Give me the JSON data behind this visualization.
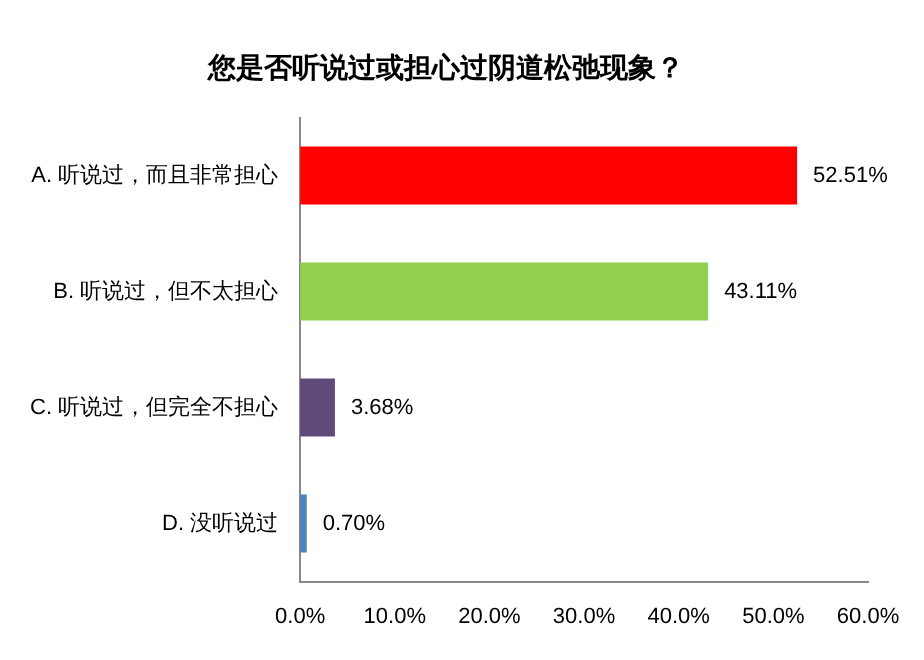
{
  "chart_data": {
    "type": "bar",
    "orientation": "horizontal",
    "title": "您是否听说过或担心过阴道松弛现象？",
    "categories": [
      "A. 听说过，而且非常担心",
      "B. 听说过，但不太担心",
      "C. 听说过，但完全不担心",
      "D. 没听说过"
    ],
    "values": [
      52.51,
      43.11,
      3.68,
      0.7
    ],
    "colors": [
      "#ff0000",
      "#92d050",
      "#604a7b",
      "#4f81bd"
    ],
    "value_labels": [
      "52.51%",
      "43.11%",
      "3.68%",
      "0.70%"
    ],
    "xlim": [
      0,
      60
    ],
    "xticks": [
      {
        "value": 0,
        "label": "0.0%"
      },
      {
        "value": 10,
        "label": "10.0%"
      },
      {
        "value": 20,
        "label": "20.0%"
      },
      {
        "value": 30,
        "label": "30.0%"
      },
      {
        "value": 40,
        "label": "40.0%"
      },
      {
        "value": 50,
        "label": "50.0%"
      },
      {
        "value": 60,
        "label": "60.0%"
      }
    ],
    "grid": false,
    "legend": false
  }
}
